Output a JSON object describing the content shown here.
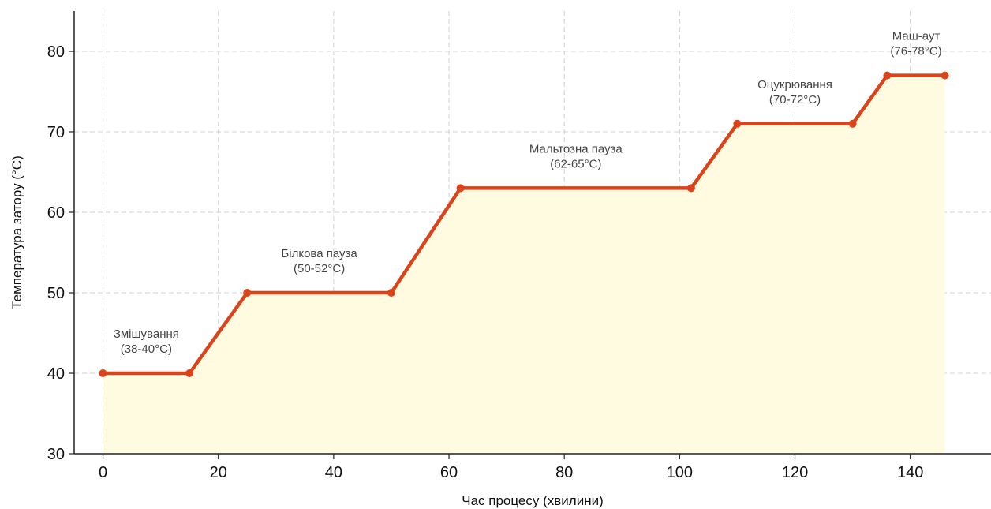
{
  "chart_data": {
    "type": "line",
    "title": "",
    "xlabel": "Час процесу (хвилини)",
    "ylabel": "Температура затору (°C)",
    "xlim": [
      -5,
      154
    ],
    "ylim": [
      30,
      85
    ],
    "xticks": [
      0,
      20,
      40,
      60,
      80,
      100,
      120,
      140
    ],
    "yticks": [
      30,
      40,
      50,
      60,
      70,
      80
    ],
    "grid": true,
    "series": [
      {
        "x": [
          0,
          15,
          25,
          50,
          62,
          102,
          110,
          130,
          136,
          146
        ],
        "y": [
          40,
          40,
          50,
          50,
          63,
          63,
          71,
          71,
          77,
          77
        ],
        "color": "#d9441a",
        "fill": "#fffbe0"
      }
    ],
    "annotations": [
      {
        "lines": [
          "Змішування",
          "(38-40°C)"
        ],
        "x": 7.5,
        "y": 40
      },
      {
        "lines": [
          "Білкова пауза",
          "(50-52°C)"
        ],
        "x": 37.5,
        "y": 50
      },
      {
        "lines": [
          "Мальтозна пауза",
          "(62-65°C)"
        ],
        "x": 82,
        "y": 63
      },
      {
        "lines": [
          "Оцукрювання",
          "(70-72°C)"
        ],
        "x": 120,
        "y": 71
      },
      {
        "lines": [
          "Маш-аут",
          "(76-78°C)"
        ],
        "x": 141,
        "y": 77
      }
    ]
  }
}
